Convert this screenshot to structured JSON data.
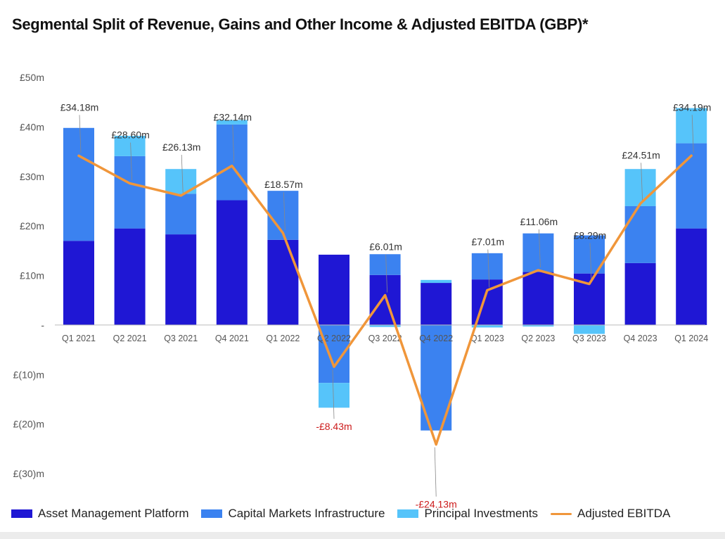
{
  "chart_data": {
    "type": "bar",
    "title": "Segmental Split of Revenue, Gains and Other Income & Adjusted EBITDA (GBP)*",
    "stacked": true,
    "categories": [
      "Q1 2021",
      "Q2 2021",
      "Q3 2021",
      "Q4 2021",
      "Q1 2022",
      "Q2 2022",
      "Q3 2022",
      "Q4 2022",
      "Q1 2023",
      "Q2 2023",
      "Q3 2023",
      "Q4 2023",
      "Q1 2024"
    ],
    "ylim": [
      -30,
      50
    ],
    "yticks": [
      {
        "value": 50,
        "label": "£50m"
      },
      {
        "value": 40,
        "label": "£40m"
      },
      {
        "value": 30,
        "label": "£30m"
      },
      {
        "value": 20,
        "label": "£20m"
      },
      {
        "value": 10,
        "label": "£10m"
      },
      {
        "value": 0,
        "label": "-"
      },
      {
        "value": -10,
        "label": "£(10)m"
      },
      {
        "value": -20,
        "label": "£(20)m"
      },
      {
        "value": -30,
        "label": "£(30)m"
      }
    ],
    "series": [
      {
        "name": "Asset Management Platform",
        "color": "#1f17d4",
        "values": [
          17,
          19.5,
          18.3,
          25.2,
          17.2,
          14.2,
          10.1,
          8.5,
          9.2,
          10.7,
          10.4,
          12.5,
          19.5
        ]
      },
      {
        "name": "Capital Markets Infrastructure",
        "color": "#3b82f0",
        "values": [
          22.8,
          14.6,
          8.2,
          15.3,
          9.9,
          -11.7,
          4.2,
          -21.3,
          5.3,
          7.8,
          7.7,
          11.5,
          17.2
        ]
      },
      {
        "name": "Principal Investments",
        "color": "#56c4fa",
        "values": [
          0,
          4.1,
          5.0,
          0.9,
          0,
          -5.0,
          -0.4,
          0.6,
          -0.5,
          -0.3,
          -1.8,
          7.5,
          7.1
        ]
      }
    ],
    "line": {
      "name": "Adjusted EBITDA",
      "color": "#f0963a",
      "values": [
        34.18,
        28.6,
        26.13,
        32.14,
        18.57,
        -8.43,
        6.01,
        -24.13,
        7.01,
        11.06,
        8.29,
        24.51,
        34.19
      ],
      "labels": [
        "£34.18m",
        "£28.60m",
        "£26.13m",
        "£32.14m",
        "£18.57m",
        "-£8.43m",
        "£6.01m",
        "-£24.13m",
        "£7.01m",
        "£11.06m",
        "£8.29m",
        "£24.51m",
        "£34.19m"
      ]
    },
    "negative_label_color": "#cc1a1a",
    "legend_position": "bottom",
    "grid": false
  }
}
